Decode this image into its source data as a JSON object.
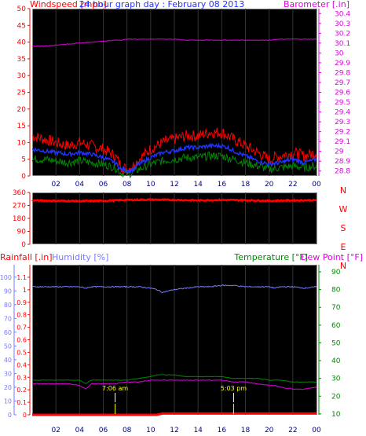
{
  "title": "24 hour graph day : February 08 2013",
  "colors": {
    "background": "#000000",
    "panel_border": "#ffffff",
    "grid": "#333333",
    "wind_gust": "#ff0000",
    "wind_avg": "#2233ff",
    "wind_low": "#008800",
    "barometer": "#dd00dd",
    "direction": "#ff0000",
    "rainfall": "#ff0000",
    "humidity": "#7777ff",
    "temperature": "#008800",
    "dew_point": "#dd00dd",
    "sunrise_sunset": "#ffff00"
  },
  "x_ticks": [
    "02",
    "04",
    "06",
    "08",
    "10",
    "12",
    "14",
    "16",
    "18",
    "20",
    "22",
    "00"
  ],
  "chart_data": [
    {
      "type": "line",
      "panel": "wind_barometer",
      "x_hours": [
        0,
        1,
        2,
        3,
        4,
        5,
        6,
        7,
        7.5,
        8,
        8.5,
        9,
        10,
        11,
        12,
        13,
        14,
        15,
        15.5,
        16,
        16.5,
        17,
        18,
        19,
        20,
        21,
        22,
        23,
        24
      ],
      "left_axis": {
        "label": "Windspeed [mph]",
        "ylim": [
          0,
          50
        ],
        "ticks": [
          "0",
          "5",
          "10",
          "15",
          "20",
          "25",
          "30",
          "35",
          "40",
          "45",
          "50"
        ]
      },
      "right_axis": {
        "label": "Barometer [.in]",
        "ylim": [
          28.75,
          30.45
        ],
        "ticks": [
          "28.8",
          "28.9",
          "29",
          "29.1",
          "29.2",
          "29.3",
          "29.4",
          "29.5",
          "29.6",
          "29.7",
          "29.8",
          "29.9",
          "30",
          "30.1",
          "30.2",
          "30.3",
          "30.4"
        ]
      },
      "series": [
        {
          "key": "gust",
          "axis": "left",
          "values": [
            12,
            11,
            10,
            9,
            10,
            9,
            8,
            6,
            3,
            2,
            3,
            5,
            8,
            10,
            11,
            12,
            12,
            13,
            13,
            13,
            12,
            11,
            9,
            7,
            5,
            6,
            7,
            6,
            7
          ]
        },
        {
          "key": "avg",
          "axis": "left",
          "values": [
            8,
            7.5,
            7,
            6.5,
            7,
            6.5,
            5.5,
            4,
            2,
            1.5,
            2,
            3.5,
            5.5,
            7,
            7.5,
            8.5,
            8.5,
            9,
            9,
            9,
            8.5,
            7.5,
            6,
            4.5,
            3.5,
            4,
            5,
            4,
            5
          ]
        },
        {
          "key": "low",
          "axis": "left",
          "values": [
            5,
            5,
            4.5,
            4,
            4.5,
            4,
            3.5,
            2.5,
            1,
            0.5,
            1,
            2,
            3.5,
            4.5,
            5,
            5.5,
            5.5,
            6,
            6,
            6,
            5.5,
            5,
            4,
            3,
            2,
            2.5,
            3,
            2.5,
            3
          ]
        },
        {
          "key": "barometer",
          "axis": "right",
          "values": [
            30.07,
            30.07,
            30.08,
            30.09,
            30.1,
            30.11,
            30.12,
            30.13,
            30.13,
            30.14,
            30.14,
            30.14,
            30.14,
            30.14,
            30.14,
            30.13,
            30.13,
            30.13,
            30.13,
            30.13,
            30.13,
            30.13,
            30.13,
            30.13,
            30.13,
            30.14,
            30.14,
            30.14,
            30.14
          ]
        }
      ]
    },
    {
      "type": "scatter",
      "panel": "wind_direction",
      "left_axis": {
        "ylim": [
          0,
          360
        ],
        "ticks": [
          "0",
          "90",
          "180",
          "270",
          "360"
        ]
      },
      "right_labels": [
        "N",
        "W",
        "S",
        "E",
        "N"
      ],
      "x_hours": [
        0,
        2,
        4,
        6,
        8,
        10,
        12,
        14,
        16,
        18,
        20,
        22,
        24
      ],
      "values": [
        305,
        302,
        300,
        302,
        308,
        310,
        308,
        305,
        308,
        306,
        302,
        305,
        306
      ]
    },
    {
      "type": "line",
      "panel": "rain_humidity_temperature",
      "x_hours": [
        0,
        1,
        2,
        3,
        4,
        4.5,
        5,
        6,
        7,
        8,
        9,
        10,
        10.5,
        11,
        11.5,
        12,
        13,
        14,
        15,
        16,
        17,
        18,
        19,
        20,
        20.5,
        21,
        22,
        23,
        24
      ],
      "left_axis": {
        "labels": [
          "Rainfall [.in]",
          "Humidity [%]"
        ],
        "rain_ticks": [
          "0",
          "0.1",
          "0.2",
          "0.3",
          "0.4",
          "0.5",
          "0.6",
          "0.7",
          "0.8",
          "0.9",
          "1",
          "1.1"
        ],
        "humidity_ticks": [
          "0",
          "10",
          "20",
          "30",
          "40",
          "50",
          "60",
          "70",
          "80",
          "90",
          "100"
        ],
        "rain_ylim": [
          0,
          1.2
        ],
        "humidity_ylim": [
          0,
          109
        ]
      },
      "right_axis": {
        "labels": [
          "Temperature [°F]",
          "Dew Point [°F]"
        ],
        "ticks": [
          "10",
          "20",
          "30",
          "40",
          "50",
          "60",
          "70",
          "80",
          "90"
        ],
        "ylim": [
          9.5,
          94
        ]
      },
      "series": [
        {
          "key": "humidity",
          "axis": "humidity",
          "values": [
            93,
            93,
            93,
            93,
            93,
            92,
            93,
            93,
            93,
            93,
            93,
            92,
            91,
            89,
            90,
            91,
            92,
            93,
            93,
            94,
            94,
            93,
            93,
            93,
            92,
            93,
            93,
            92,
            93
          ]
        },
        {
          "key": "temperature",
          "axis": "right",
          "values": [
            29,
            29,
            29,
            29,
            29,
            27,
            29,
            29,
            29,
            29,
            30,
            31,
            32,
            32,
            32,
            32,
            31,
            31,
            31,
            31,
            30,
            30,
            30,
            29,
            29,
            29,
            28,
            28,
            28
          ]
        },
        {
          "key": "dew_point",
          "axis": "right",
          "values": [
            27,
            27,
            27,
            27,
            26,
            24,
            27,
            27,
            27,
            28,
            28,
            29,
            29,
            29,
            29,
            29,
            29,
            29,
            29,
            29,
            28,
            28,
            27,
            26,
            26,
            25,
            24,
            24,
            25
          ]
        },
        {
          "key": "rainfall",
          "axis": "rain",
          "values": [
            0,
            0,
            0,
            0,
            0,
            0,
            0,
            0,
            0,
            0,
            0,
            0,
            0,
            0.01,
            0.01,
            0.01,
            0.01,
            0.01,
            0.01,
            0.01,
            0.01,
            0.01,
            0.01,
            0.01,
            0.01,
            0.01,
            0.01,
            0.01,
            0.01
          ]
        }
      ],
      "sun_markers": [
        {
          "hour": 7.0,
          "label": "7:06 am"
        },
        {
          "hour": 17.0,
          "label": "5:03 pm"
        }
      ]
    }
  ]
}
